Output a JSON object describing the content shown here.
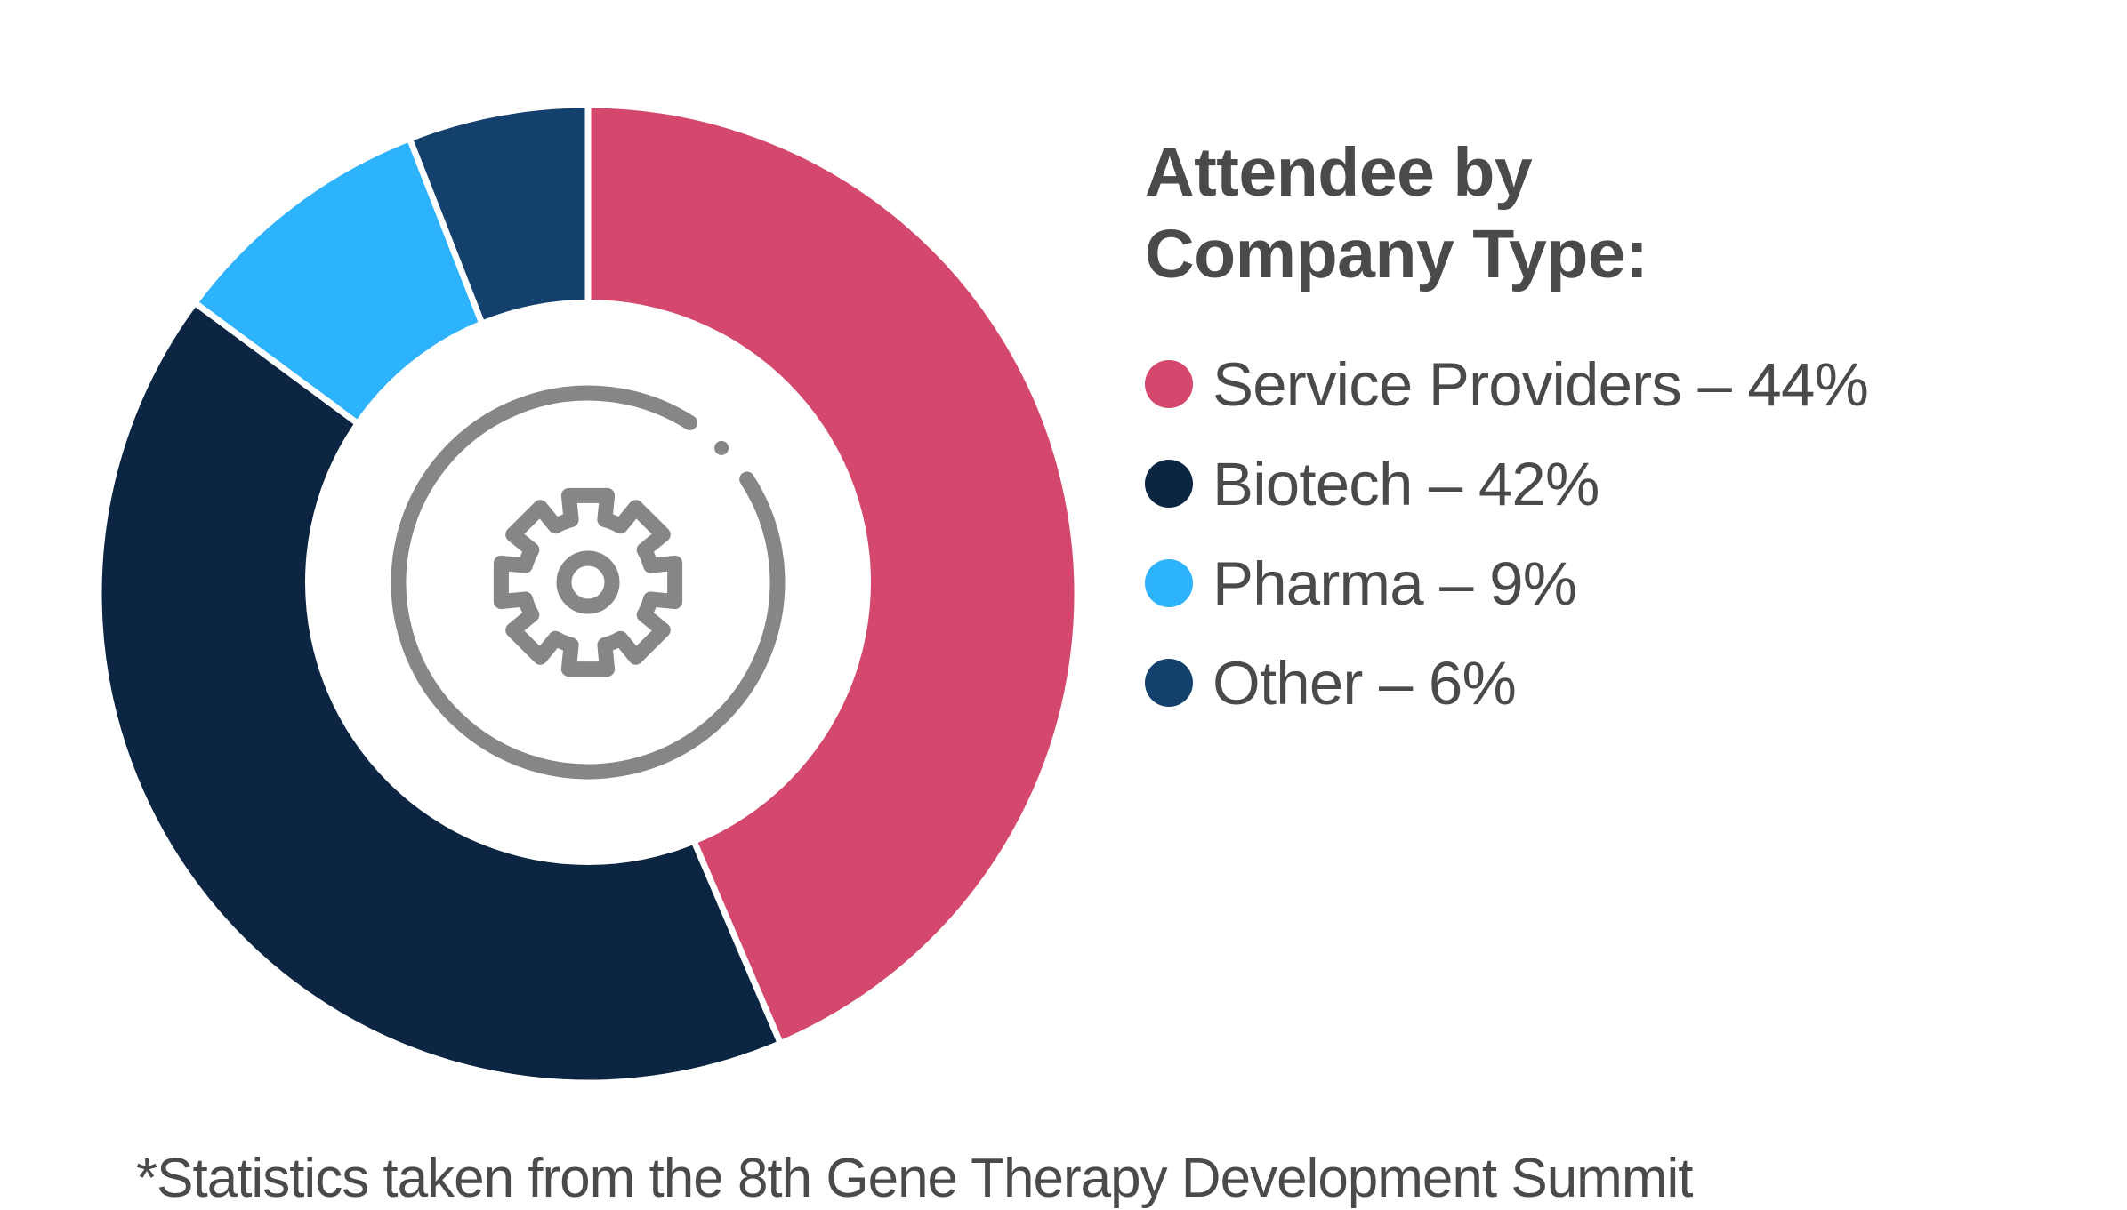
{
  "chart_data": {
    "type": "pie",
    "subtype": "donut",
    "title": "Attendee by Company Type:",
    "title_lines": [
      "Attendee by",
      "Company Type:"
    ],
    "categories": [
      "Service Providers",
      "Biotech",
      "Pharma",
      "Other"
    ],
    "values": [
      44,
      42,
      9,
      6
    ],
    "unit": "%",
    "colors": [
      "#D4486D",
      "#0C2542",
      "#2DB2FC",
      "#14406D"
    ],
    "legend_position": "right",
    "center_icon": "gear-icon",
    "footnote": "*Statistics taken from the 8th Gene Therapy Development Summit"
  },
  "legend": {
    "items": [
      {
        "label": "Service Providers – 44%",
        "color": "#D4486D"
      },
      {
        "label": "Biotech – 42%",
        "color": "#0C2542"
      },
      {
        "label": "Pharma – 9%",
        "color": "#2DB2FC"
      },
      {
        "label": "Other – 6%",
        "color": "#14406D"
      }
    ]
  },
  "colors": {
    "text": "#4A4A4A",
    "icon": "#868686",
    "background": "#FFFFFF"
  }
}
